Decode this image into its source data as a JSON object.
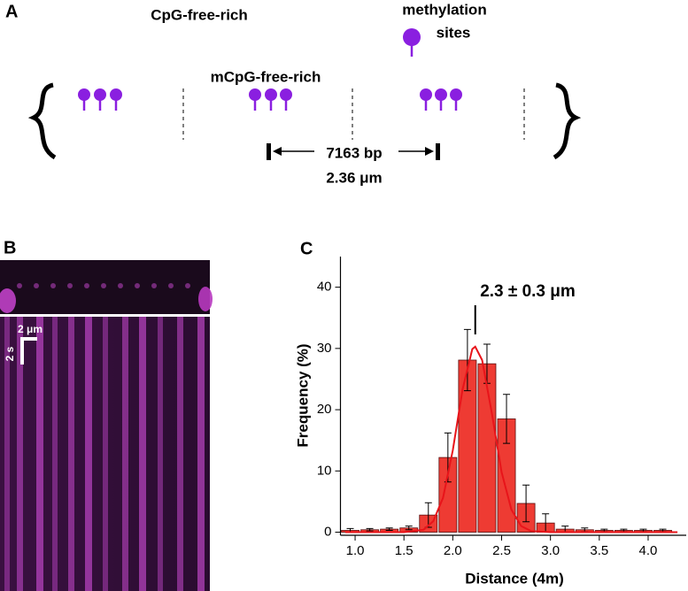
{
  "panels": {
    "a": {
      "label": "A",
      "cpg_label": "CpG-free-rich",
      "legend_lines": [
        "methylation",
        "sites"
      ],
      "mcpg_label": "mCpG-free-rich",
      "length_bp": "7163 bp",
      "length_um": "2.36 μm"
    },
    "b": {
      "label": "B",
      "scale_x": "2 μm",
      "scale_y": "2 s"
    }
  },
  "chart_data": {
    "type": "histogram",
    "panel_label": "C",
    "xlabel": "Distance (4m)",
    "ylabel": "Frequency (%)",
    "annotation": "2.3 ± 0.3 μm",
    "annotation_x": 2.23,
    "bins": [
      0.85,
      1.05,
      1.25,
      1.45,
      1.65,
      1.85,
      2.05,
      2.25,
      2.45,
      2.65,
      2.85,
      3.05,
      3.25,
      3.45,
      3.65,
      3.85,
      4.05,
      4.25
    ],
    "values": [
      0.3,
      0.4,
      0.5,
      0.7,
      2.8,
      12.2,
      28.1,
      27.5,
      18.5,
      4.7,
      1.5,
      0.5,
      0.4,
      0.3,
      0.3,
      0.3,
      0.3
    ],
    "errors": [
      0.3,
      0.2,
      0.2,
      0.3,
      2,
      4,
      5,
      3.2,
      4,
      3,
      1.5,
      0.5,
      0.3,
      0.2,
      0.2,
      0.2,
      0.2
    ],
    "color": "#ee3b33",
    "fit": {
      "color": "#e8141a",
      "x": [
        0.9,
        1.5,
        1.7,
        1.8,
        1.9,
        2.0,
        2.1,
        2.2,
        2.23,
        2.3,
        2.4,
        2.5,
        2.6,
        2.7,
        2.8,
        3.0,
        4.3
      ],
      "values": [
        0,
        0,
        0.4,
        1.8,
        5.6,
        13.4,
        23.3,
        29.9,
        30.3,
        28.1,
        19.4,
        9.8,
        3.7,
        1.0,
        0.2,
        0,
        0
      ]
    },
    "xlim": [
      0.85,
      4.39
    ],
    "ylim": [
      -0.5,
      45
    ],
    "xticks": [
      {
        "value": 1.0,
        "label": "1.0"
      },
      1.5,
      {
        "value": 2.0,
        "label": "2.0"
      },
      2.5,
      {
        "value": 3.0,
        "label": "3.0"
      },
      3.5,
      {
        "value": 4.0,
        "label": "4.0"
      }
    ],
    "yticks": [
      0,
      10,
      20,
      30,
      40
    ]
  }
}
